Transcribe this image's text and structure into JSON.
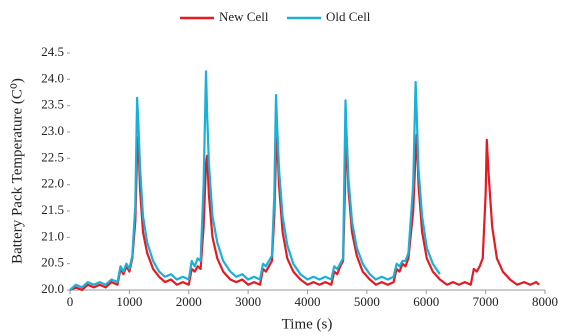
{
  "chart_data": {
    "type": "line",
    "x_label": "Time (s)",
    "y_label": "Battery Pack Temperature (C⁰)",
    "xlim": [
      0,
      8000
    ],
    "xticks": [
      0,
      1000,
      2000,
      3000,
      4000,
      5000,
      6000,
      7000,
      8000
    ],
    "ylim": [
      20,
      24.5
    ],
    "yticks": [
      {
        "value": 20,
        "label": "20.0"
      },
      20.5,
      {
        "value": 21,
        "label": "21.0"
      },
      21.5,
      {
        "value": 22,
        "label": "22.0"
      },
      22.5,
      {
        "value": 23,
        "label": "23.0"
      },
      23.5,
      {
        "value": 24,
        "label": "24.0"
      },
      24.5
    ],
    "grid": false,
    "x": [
      0,
      100,
      200,
      300,
      400,
      500,
      600,
      700,
      800,
      850,
      900,
      950,
      1000,
      1050,
      1100,
      1130,
      1150,
      1180,
      1230,
      1300,
      1400,
      1500,
      1600,
      1700,
      1800,
      1900,
      2000,
      2050,
      2100,
      2150,
      2200,
      2250,
      2290,
      2310,
      2340,
      2400,
      2480,
      2580,
      2700,
      2800,
      2900,
      3000,
      3100,
      3200,
      3250,
      3300,
      3350,
      3400,
      3440,
      3470,
      3490,
      3520,
      3580,
      3660,
      3760,
      3880,
      4000,
      4100,
      4200,
      4300,
      4400,
      4450,
      4500,
      4550,
      4600,
      4640,
      4660,
      4690,
      4750,
      4830,
      4930,
      5050,
      5150,
      5250,
      5350,
      5450,
      5500,
      5550,
      5600,
      5650,
      5700,
      5780,
      5820,
      5840,
      5870,
      5930,
      6010,
      6110,
      6230,
      6350,
      6450,
      6550,
      6650,
      6750,
      6800,
      6850,
      6900,
      6950,
      7000,
      7020,
      7050,
      7110,
      7190,
      7290,
      7410,
      7530,
      7650,
      7750,
      7850,
      7900
    ],
    "series": [
      {
        "name": "New Cell",
        "color": "#e31b23",
        "values": [
          20.0,
          20.05,
          20.0,
          20.1,
          20.05,
          20.1,
          20.05,
          20.15,
          20.1,
          20.4,
          20.3,
          20.45,
          20.35,
          20.6,
          21.3,
          22.6,
          22.9,
          21.9,
          21.1,
          20.7,
          20.4,
          20.25,
          20.15,
          20.2,
          20.1,
          20.15,
          20.1,
          20.4,
          20.35,
          20.45,
          20.4,
          21.2,
          22.4,
          22.55,
          21.8,
          21.0,
          20.6,
          20.35,
          20.2,
          20.15,
          20.2,
          20.1,
          20.15,
          20.1,
          20.4,
          20.35,
          20.45,
          20.55,
          21.4,
          22.6,
          22.9,
          22.0,
          21.1,
          20.6,
          20.35,
          20.2,
          20.1,
          20.15,
          20.1,
          20.15,
          20.1,
          20.35,
          20.3,
          20.45,
          20.55,
          22.3,
          22.9,
          21.9,
          21.1,
          20.65,
          20.35,
          20.2,
          20.1,
          20.15,
          20.1,
          20.15,
          20.4,
          20.35,
          20.5,
          20.45,
          20.6,
          21.5,
          22.6,
          22.95,
          22.0,
          21.1,
          20.6,
          20.35,
          20.2,
          20.1,
          20.15,
          20.1,
          20.15,
          20.1,
          20.4,
          20.35,
          20.45,
          20.6,
          21.8,
          22.85,
          22.2,
          21.2,
          20.6,
          20.35,
          20.2,
          20.1,
          20.15,
          20.1,
          20.15,
          20.1
        ]
      },
      {
        "name": "Old Cell",
        "color": "#1ab0d8",
        "values": [
          20.0,
          20.1,
          20.05,
          20.15,
          20.1,
          20.15,
          20.1,
          20.2,
          20.15,
          20.45,
          20.35,
          20.5,
          20.4,
          20.65,
          21.6,
          23.65,
          23.2,
          22.3,
          21.4,
          20.9,
          20.55,
          20.35,
          20.25,
          20.3,
          20.2,
          20.25,
          20.2,
          20.55,
          20.45,
          20.6,
          20.55,
          22.0,
          24.15,
          23.3,
          22.4,
          21.4,
          20.9,
          20.55,
          20.35,
          20.25,
          20.3,
          20.2,
          20.25,
          20.2,
          20.5,
          20.45,
          20.55,
          20.65,
          21.8,
          23.7,
          23.1,
          22.3,
          21.4,
          20.85,
          20.5,
          20.3,
          20.2,
          20.25,
          20.2,
          20.25,
          20.2,
          20.45,
          20.4,
          20.5,
          20.6,
          23.6,
          22.9,
          22.1,
          21.3,
          20.8,
          20.5,
          20.3,
          20.2,
          20.25,
          20.2,
          20.25,
          20.5,
          20.45,
          20.55,
          20.55,
          20.7,
          22.0,
          23.95,
          23.3,
          22.3,
          21.4,
          20.8,
          20.5,
          20.3,
          null,
          null,
          null,
          null,
          null,
          null,
          null,
          null,
          null,
          null,
          null,
          null,
          null,
          null,
          null,
          null,
          null,
          null,
          null,
          null,
          null
        ]
      }
    ]
  }
}
